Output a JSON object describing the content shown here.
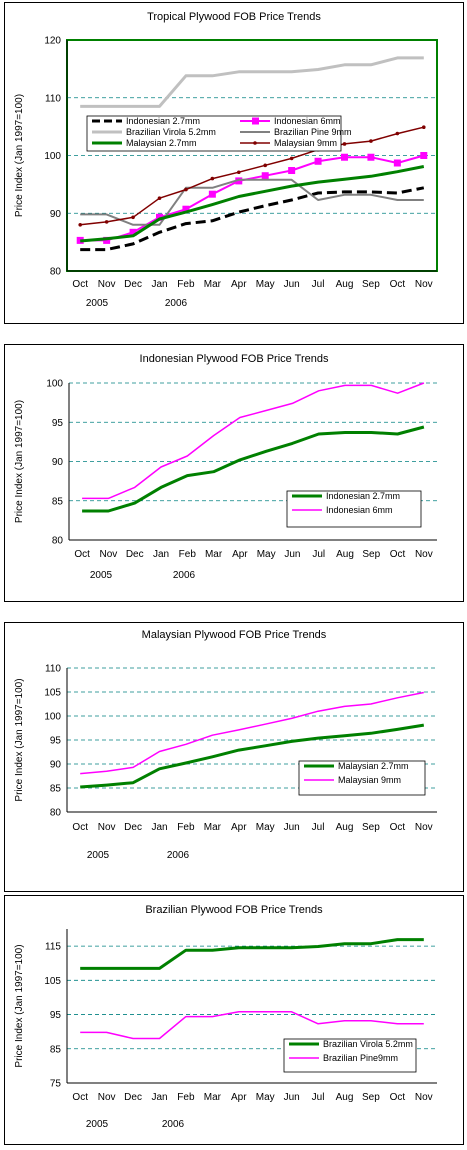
{
  "chart_data": [
    {
      "type": "line",
      "title": "Tropical Plywood FOB Price Trends",
      "xlabel": "",
      "ylabel": "Price Index (Jan 1997=100)",
      "categories": [
        "Oct",
        "Nov",
        "Dec",
        "Jan",
        "Feb",
        "Mar",
        "Apr",
        "May",
        "Jun",
        "Jul",
        "Aug",
        "Sep",
        "Oct",
        "Nov"
      ],
      "year_labels": [
        "2005",
        "2006"
      ],
      "ylim": [
        80,
        120
      ],
      "yticks": [
        80,
        90,
        100,
        110,
        120
      ],
      "grid": true,
      "legend": "inside-center",
      "plot_background": "#ffffff",
      "plot_border": "#008000",
      "series": [
        {
          "name": "Indonesian 2.7mm",
          "color": "#000000",
          "values": [
            83.7,
            83.7,
            84.7,
            86.7,
            88.2,
            88.7,
            90.2,
            91.3,
            92.3,
            93.5,
            93.7,
            93.7,
            93.5,
            94.4
          ]
        },
        {
          "name": "Indonesian 6mm",
          "color": "#ff00ff",
          "values": [
            85.3,
            85.3,
            86.7,
            89.3,
            90.7,
            93.3,
            95.6,
            96.5,
            97.4,
            99.0,
            99.7,
            99.7,
            98.7,
            100.0
          ]
        },
        {
          "name": "Brazilian Virola 5.2mm",
          "color": "#c0c0c0",
          "values": [
            108.5,
            108.5,
            108.5,
            108.5,
            113.8,
            113.8,
            114.5,
            114.5,
            114.5,
            114.9,
            115.7,
            115.7,
            116.9,
            116.9
          ]
        },
        {
          "name": "Brazilian Pine 9mm",
          "color": "#808080",
          "values": [
            89.8,
            89.8,
            88.0,
            88.0,
            94.4,
            94.4,
            95.8,
            95.8,
            95.8,
            92.3,
            93.2,
            93.2,
            92.3,
            92.3
          ]
        },
        {
          "name": "Malaysian 2.7mm",
          "color": "#008000",
          "values": [
            85.2,
            85.6,
            86.1,
            89.0,
            90.2,
            91.5,
            92.9,
            93.8,
            94.7,
            95.4,
            95.9,
            96.4,
            97.2,
            98.1
          ]
        },
        {
          "name": "Malaysian 9mm",
          "color": "#800000",
          "values": [
            88.0,
            88.5,
            89.3,
            92.6,
            94.1,
            96.0,
            97.1,
            98.3,
            99.5,
            101.0,
            102.0,
            102.5,
            103.8,
            104.9
          ]
        }
      ]
    },
    {
      "type": "line",
      "title": "Indonesian Plywood FOB Price Trends",
      "xlabel": "",
      "ylabel": "Price Index (Jan 1997=100)",
      "categories": [
        "Oct",
        "Nov",
        "Dec",
        "Jan",
        "Feb",
        "Mar",
        "Apr",
        "May",
        "Jun",
        "Jul",
        "Aug",
        "Sep",
        "Oct",
        "Nov"
      ],
      "year_labels": [
        "2005",
        "2006"
      ],
      "ylim": [
        80,
        100
      ],
      "yticks": [
        80,
        85,
        90,
        95,
        100
      ],
      "grid": true,
      "legend": "bottom-right",
      "series": [
        {
          "name": "Indonesian 2.7mm",
          "color": "#008000",
          "values": [
            83.7,
            83.7,
            84.7,
            86.7,
            88.2,
            88.7,
            90.2,
            91.3,
            92.3,
            93.5,
            93.7,
            93.7,
            93.5,
            94.4
          ]
        },
        {
          "name": "Indonesian 6mm",
          "color": "#ff00ff",
          "values": [
            85.3,
            85.3,
            86.7,
            89.3,
            90.7,
            93.3,
            95.6,
            96.5,
            97.4,
            99.0,
            99.7,
            99.7,
            98.7,
            100.0
          ]
        }
      ]
    },
    {
      "type": "line",
      "title": "Malaysian Plywood FOB Price Trends",
      "xlabel": "",
      "ylabel": "Price Index (Jan 1997=100)",
      "categories": [
        "Oct",
        "Nov",
        "Dec",
        "Jan",
        "Feb",
        "Mar",
        "Apr",
        "May",
        "Jun",
        "Jul",
        "Aug",
        "Sep",
        "Oct",
        "Nov"
      ],
      "year_labels": [
        "2005",
        "2006"
      ],
      "ylim": [
        80,
        110
      ],
      "yticks": [
        80,
        85,
        90,
        95,
        100,
        105,
        110
      ],
      "grid": true,
      "legend": "bottom-right",
      "series": [
        {
          "name": "Malaysian 2.7mm",
          "color": "#008000",
          "values": [
            85.2,
            85.6,
            86.1,
            89.0,
            90.2,
            91.5,
            92.9,
            93.8,
            94.7,
            95.4,
            95.9,
            96.4,
            97.2,
            98.1
          ]
        },
        {
          "name": "Malaysian 9mm",
          "color": "#ff00ff",
          "values": [
            88.0,
            88.5,
            89.3,
            92.6,
            94.1,
            96.0,
            97.1,
            98.3,
            99.5,
            101.0,
            102.0,
            102.5,
            103.8,
            104.9
          ]
        }
      ]
    },
    {
      "type": "line",
      "title": "Brazilian Plywood FOB Price Trends",
      "xlabel": "",
      "ylabel": "Price Index (Jan 1997=100)",
      "categories": [
        "Oct",
        "Nov",
        "Dec",
        "Jan",
        "Feb",
        "Mar",
        "Apr",
        "May",
        "Jun",
        "Jul",
        "Aug",
        "Sep",
        "Oct",
        "Nov"
      ],
      "year_labels": [
        "2005",
        "2006"
      ],
      "ylim": [
        75,
        120
      ],
      "yticks": [
        75,
        85,
        95,
        105,
        115
      ],
      "grid": true,
      "legend": "bottom-right",
      "series": [
        {
          "name": "Brazilian Virola 5.2mm",
          "color": "#008000",
          "values": [
            108.5,
            108.5,
            108.5,
            108.5,
            113.8,
            113.8,
            114.5,
            114.5,
            114.5,
            114.9,
            115.7,
            115.7,
            116.9,
            116.9
          ]
        },
        {
          "name": "Brazilian Pine9mm",
          "color": "#ff00ff",
          "values": [
            89.8,
            89.8,
            88.0,
            88.0,
            94.4,
            94.4,
            95.8,
            95.8,
            95.8,
            92.3,
            93.2,
            93.2,
            92.3,
            92.3
          ]
        }
      ]
    }
  ]
}
